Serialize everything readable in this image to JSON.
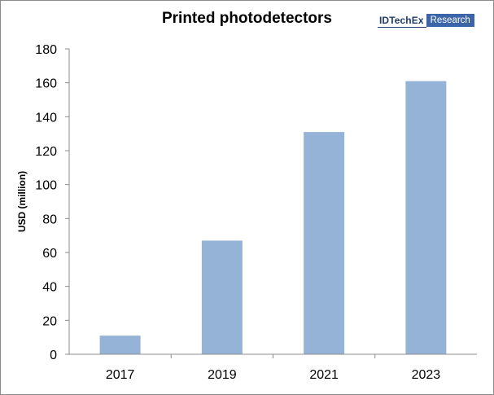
{
  "chart_data": {
    "type": "bar",
    "title": "Printed photodetectors",
    "xlabel": "",
    "ylabel": "USD (million)",
    "categories": [
      "2017",
      "2019",
      "2021",
      "2023"
    ],
    "values": [
      11,
      67,
      131,
      161
    ],
    "ylim": [
      0,
      180
    ],
    "yticks": [
      "0",
      "20",
      "40",
      "60",
      "80",
      "100",
      "120",
      "140",
      "160",
      "180"
    ],
    "bar_color": "#95b3d7",
    "grid": false,
    "legend": "none"
  },
  "logo": {
    "brand": "IDTechEx",
    "tag": "Research",
    "brand_color": "#1f3a6b",
    "tag_color": "#3c64a8"
  }
}
